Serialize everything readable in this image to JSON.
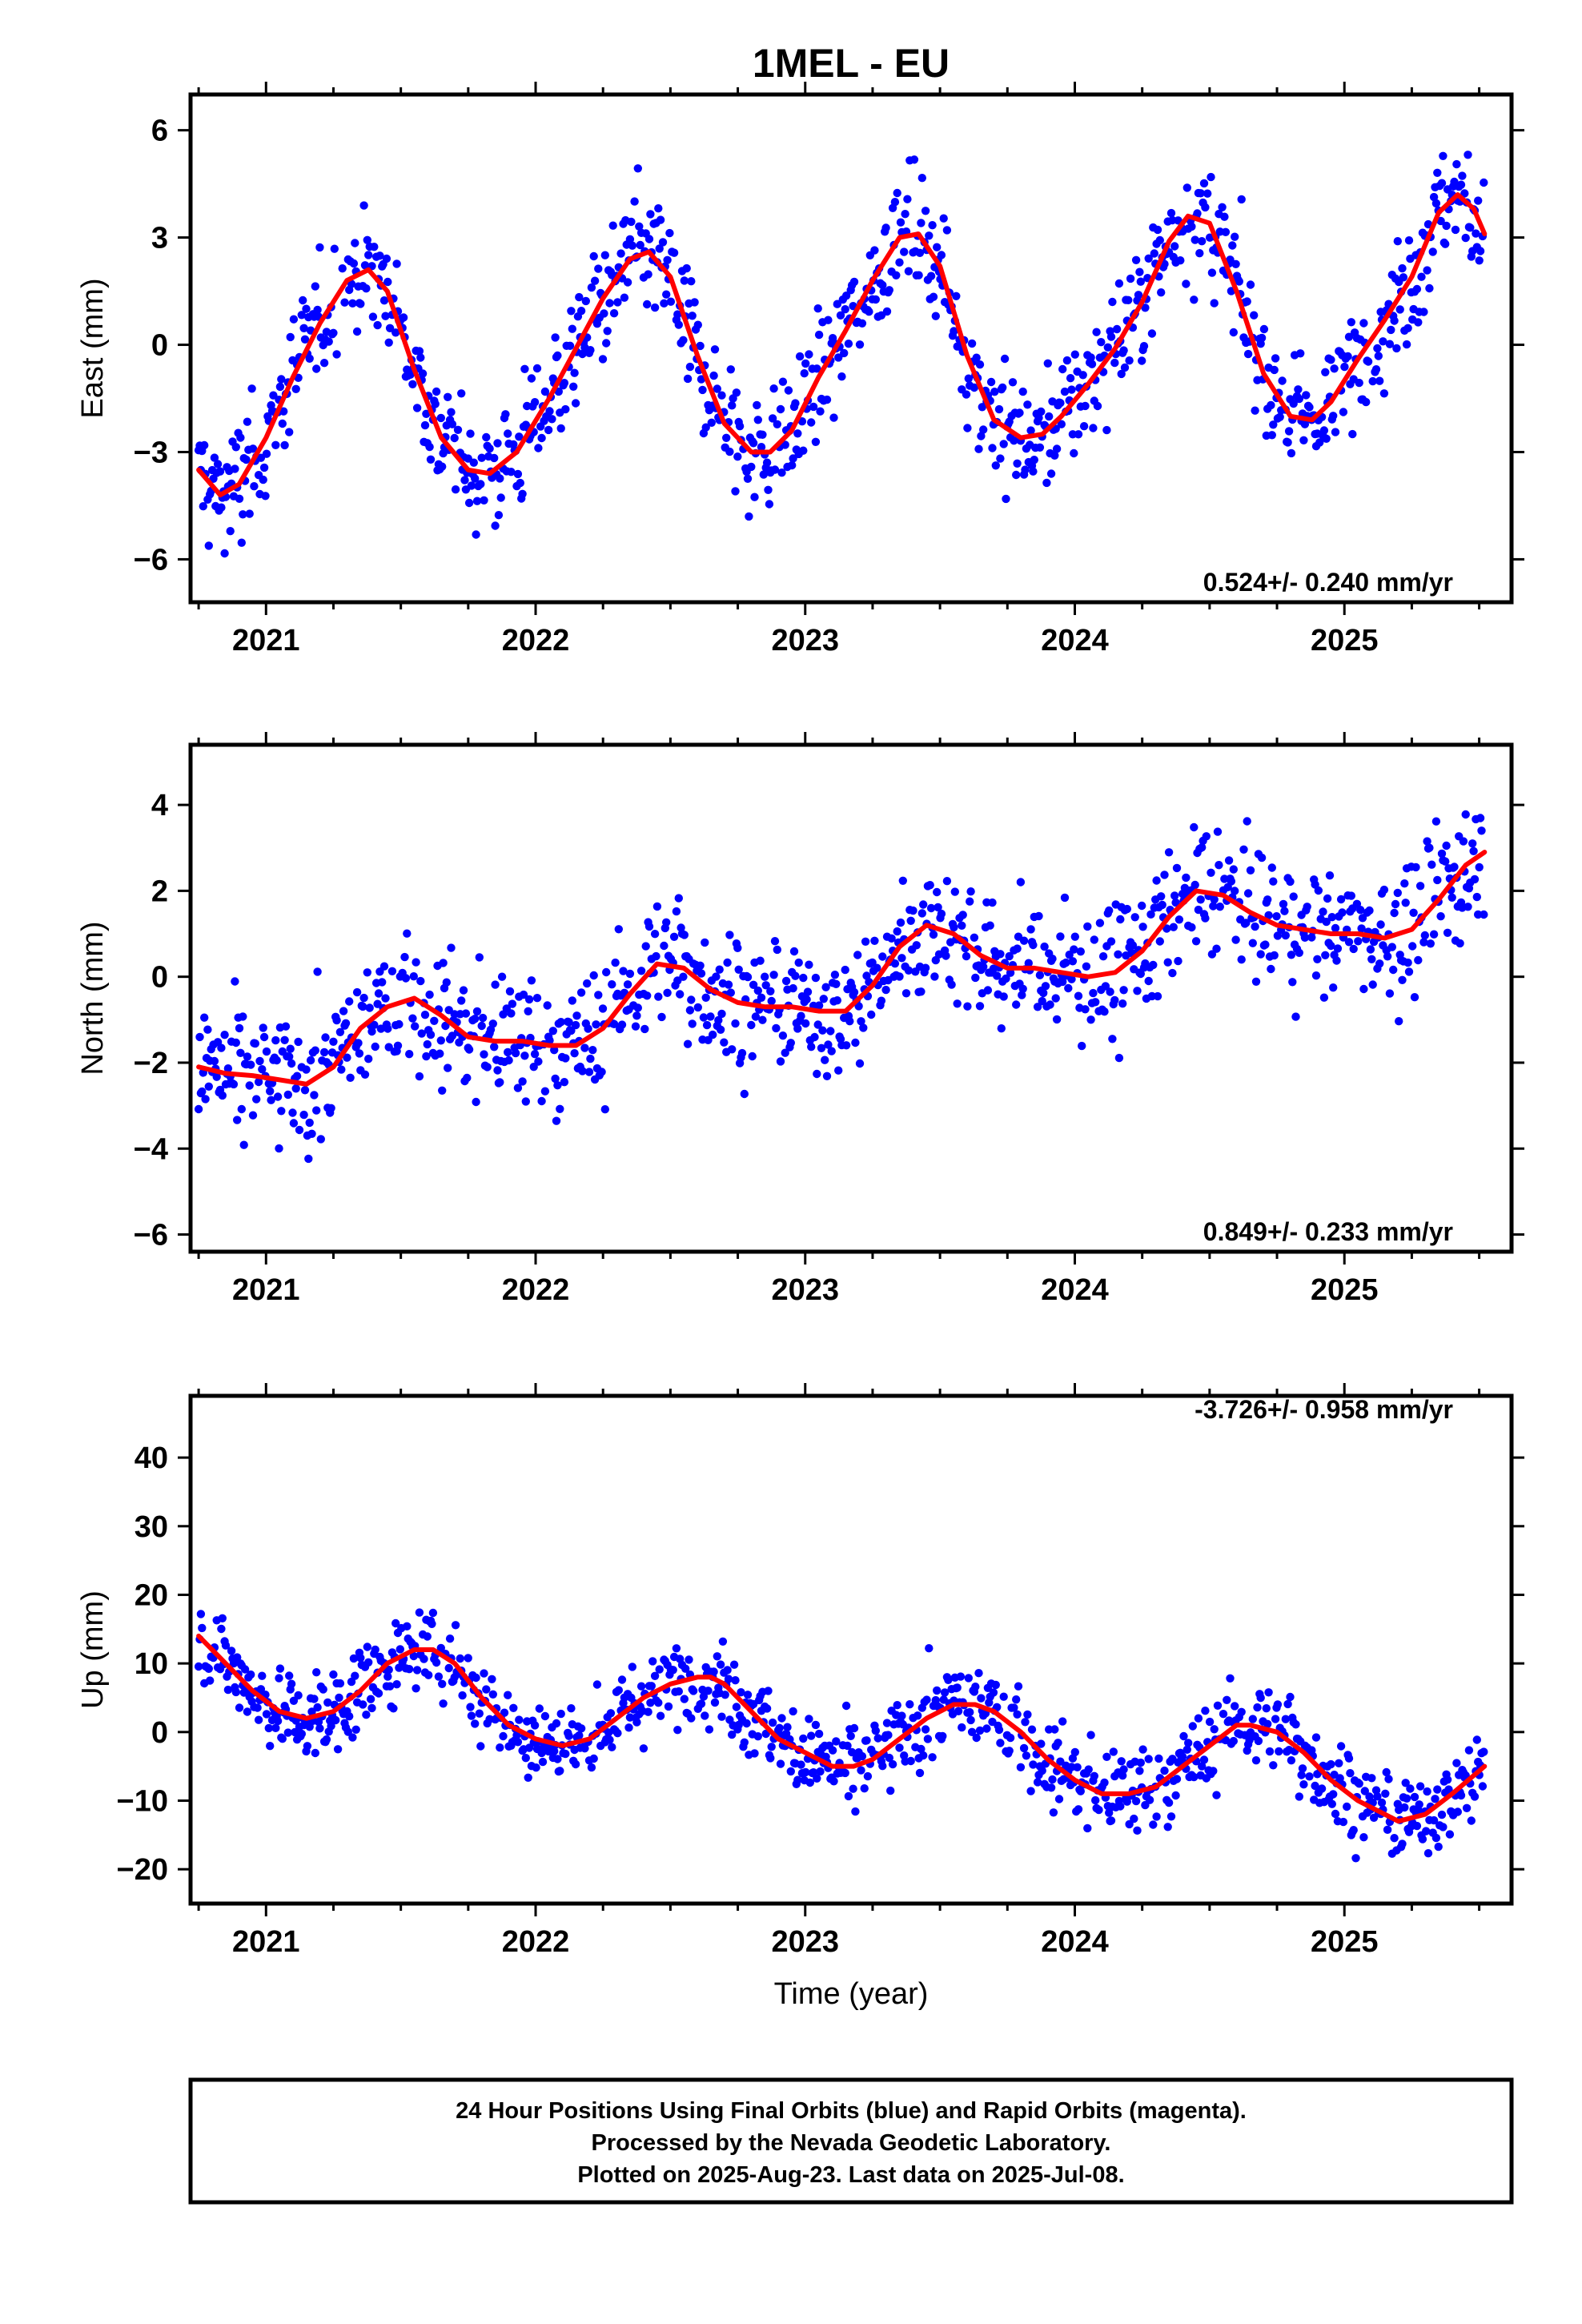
{
  "title": "1MEL - EU",
  "xlabel": "Time (year)",
  "footer_lines": [
    "24 Hour Positions Using Final Orbits (blue) and Rapid Orbits (magenta).",
    "Processed by the Nevada Geodetic Laboratory.",
    "Plotted on 2025-Aug-23. Last data on 2025-Jul-08."
  ],
  "colors": {
    "points": "#0000ff",
    "fit": "#ff0000",
    "axis": "#000000"
  },
  "chart_data": [
    {
      "type": "scatter",
      "ylabel": "East (mm)",
      "rate_text": "0.524+/- 0.240 mm/yr",
      "rate_position": "bottom-right",
      "xlim": [
        2020.72,
        2025.62
      ],
      "ylim": [
        -7.2,
        7.0
      ],
      "xticks": [
        2021,
        2022,
        2023,
        2024,
        2025
      ],
      "xtick_labels": [
        "2021",
        "2022",
        "2023",
        "2024",
        "2025"
      ],
      "yticks": [
        -6,
        -3,
        0,
        3,
        6
      ],
      "ytick_labels": [
        "−6",
        "−3",
        "0",
        "3",
        "6"
      ],
      "grid": false,
      "fit_series": {
        "x": [
          2020.75,
          2020.83,
          2020.9,
          2021.0,
          2021.1,
          2021.2,
          2021.3,
          2021.38,
          2021.45,
          2021.55,
          2021.65,
          2021.75,
          2021.83,
          2021.93,
          2022.05,
          2022.15,
          2022.25,
          2022.35,
          2022.42,
          2022.5,
          2022.6,
          2022.7,
          2022.8,
          2022.87,
          2022.95,
          2023.05,
          2023.15,
          2023.25,
          2023.35,
          2023.42,
          2023.5,
          2023.6,
          2023.7,
          2023.8,
          2023.88,
          2023.95,
          2024.05,
          2024.15,
          2024.25,
          2024.35,
          2024.42,
          2024.5,
          2024.6,
          2024.7,
          2024.8,
          2024.88,
          2024.95,
          2025.05,
          2025.15,
          2025.25,
          2025.35,
          2025.42,
          2025.48,
          2025.52
        ],
        "y": [
          -3.5,
          -4.2,
          -3.9,
          -2.6,
          -0.9,
          0.6,
          1.8,
          2.1,
          1.5,
          -0.7,
          -2.6,
          -3.5,
          -3.6,
          -3.0,
          -1.5,
          -0.1,
          1.3,
          2.4,
          2.6,
          1.9,
          -0.3,
          -2.2,
          -3.0,
          -3.0,
          -2.4,
          -0.9,
          0.4,
          1.8,
          3.0,
          3.1,
          2.2,
          -0.3,
          -2.1,
          -2.6,
          -2.5,
          -2.0,
          -1.1,
          -0.1,
          1.2,
          2.9,
          3.6,
          3.4,
          1.5,
          -0.8,
          -2.0,
          -2.1,
          -1.6,
          -0.4,
          0.7,
          1.9,
          3.7,
          4.2,
          3.8,
          3.1
        ]
      }
    },
    {
      "type": "scatter",
      "ylabel": "North (mm)",
      "rate_text": "0.849+/- 0.233 mm/yr",
      "rate_position": "bottom-right",
      "xlim": [
        2020.72,
        2025.62
      ],
      "ylim": [
        -6.4,
        5.4
      ],
      "xticks": [
        2021,
        2022,
        2023,
        2024,
        2025
      ],
      "xtick_labels": [
        "2021",
        "2022",
        "2023",
        "2024",
        "2025"
      ],
      "yticks": [
        -6,
        -4,
        -2,
        0,
        2,
        4
      ],
      "ytick_labels": [
        "−6",
        "−4",
        "−2",
        "0",
        "2",
        "4"
      ],
      "grid": false,
      "fit_series": {
        "x": [
          2020.75,
          2020.85,
          2020.95,
          2021.05,
          2021.15,
          2021.25,
          2021.35,
          2021.45,
          2021.55,
          2021.65,
          2021.75,
          2021.85,
          2021.95,
          2022.05,
          2022.15,
          2022.25,
          2022.35,
          2022.45,
          2022.55,
          2022.65,
          2022.75,
          2022.85,
          2022.95,
          2023.05,
          2023.15,
          2023.25,
          2023.35,
          2023.45,
          2023.55,
          2023.65,
          2023.75,
          2023.85,
          2023.95,
          2024.05,
          2024.15,
          2024.25,
          2024.35,
          2024.45,
          2024.55,
          2024.65,
          2024.75,
          2024.85,
          2024.95,
          2025.05,
          2025.15,
          2025.25,
          2025.35,
          2025.45,
          2025.52
        ],
        "y": [
          -2.1,
          -2.25,
          -2.3,
          -2.4,
          -2.5,
          -2.1,
          -1.2,
          -0.7,
          -0.5,
          -0.9,
          -1.4,
          -1.5,
          -1.5,
          -1.6,
          -1.6,
          -1.2,
          -0.4,
          0.3,
          0.2,
          -0.3,
          -0.6,
          -0.7,
          -0.7,
          -0.8,
          -0.8,
          -0.2,
          0.7,
          1.2,
          1.0,
          0.5,
          0.2,
          0.2,
          0.1,
          0.0,
          0.1,
          0.6,
          1.4,
          2.0,
          1.9,
          1.5,
          1.2,
          1.1,
          1.0,
          1.0,
          0.9,
          1.1,
          1.8,
          2.6,
          2.9
        ]
      }
    },
    {
      "type": "scatter",
      "ylabel": "Up (mm)",
      "rate_text": "-3.726+/- 0.958 mm/yr",
      "rate_position": "top-right",
      "xlim": [
        2020.72,
        2025.62
      ],
      "ylim": [
        -25,
        49
      ],
      "xticks": [
        2021,
        2022,
        2023,
        2024,
        2025
      ],
      "xtick_labels": [
        "2021",
        "2022",
        "2023",
        "2024",
        "2025"
      ],
      "yticks": [
        -20,
        -10,
        0,
        10,
        20,
        30,
        40
      ],
      "ytick_labels": [
        "−20",
        "−10",
        "0",
        "10",
        "20",
        "30",
        "40"
      ],
      "grid": false,
      "fit_series": {
        "x": [
          2020.75,
          2020.85,
          2020.95,
          2021.05,
          2021.15,
          2021.25,
          2021.35,
          2021.45,
          2021.55,
          2021.62,
          2021.7,
          2021.8,
          2021.9,
          2022.0,
          2022.1,
          2022.2,
          2022.3,
          2022.4,
          2022.5,
          2022.6,
          2022.65,
          2022.7,
          2022.8,
          2022.9,
          2023.0,
          2023.1,
          2023.18,
          2023.25,
          2023.35,
          2023.45,
          2023.55,
          2023.63,
          2023.7,
          2023.8,
          2023.9,
          2024.0,
          2024.1,
          2024.2,
          2024.3,
          2024.4,
          2024.5,
          2024.6,
          2024.65,
          2024.75,
          2024.85,
          2024.95,
          2025.05,
          2025.15,
          2025.2,
          2025.3,
          2025.4,
          2025.52
        ],
        "y": [
          14,
          10,
          6,
          3,
          2,
          3,
          6,
          10,
          12,
          12,
          10,
          5,
          1,
          -1,
          -2,
          -1,
          2,
          5,
          7,
          8,
          8,
          7,
          3,
          -1,
          -3,
          -5,
          -5,
          -4,
          -1,
          2,
          4,
          4,
          3,
          0,
          -4,
          -7,
          -9,
          -9,
          -8,
          -5,
          -2,
          1,
          1,
          0,
          -3,
          -7,
          -10,
          -12,
          -13,
          -12,
          -9,
          -5
        ]
      }
    }
  ]
}
